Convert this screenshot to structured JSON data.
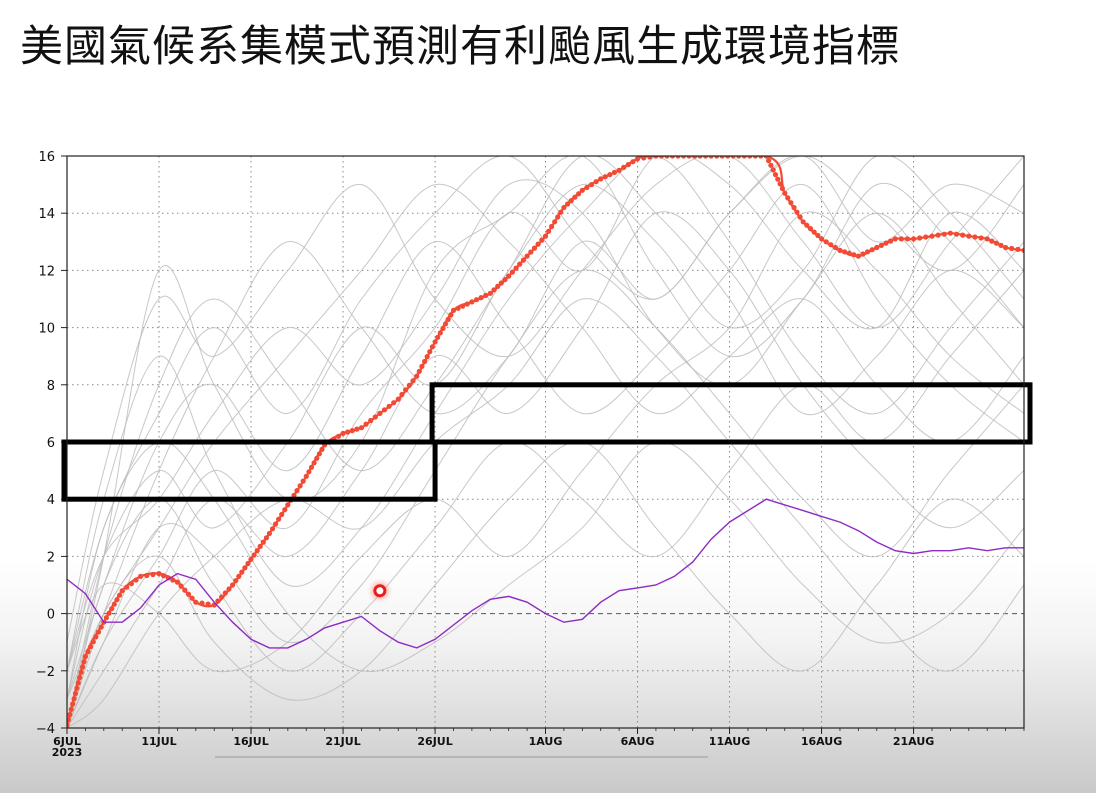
{
  "title": "美國氣候系集模式預測有利颱風生成環境指標",
  "chart_data": {
    "type": "line",
    "title": "",
    "xlabel": "",
    "ylabel": "",
    "ylim": [
      -4,
      16
    ],
    "yticks": [
      -4,
      -2,
      0,
      2,
      4,
      6,
      8,
      10,
      12,
      14,
      16
    ],
    "xlim": [
      "2023-07-06",
      "2023-08-27"
    ],
    "xticks": [
      {
        "date": "2023-07-06",
        "label": "6JUL",
        "sublabel": "2023"
      },
      {
        "date": "2023-07-11",
        "label": "11JUL"
      },
      {
        "date": "2023-07-16",
        "label": "16JUL"
      },
      {
        "date": "2023-07-21",
        "label": "21JUL"
      },
      {
        "date": "2023-07-26",
        "label": "26JUL"
      },
      {
        "date": "2023-08-01",
        "label": "1AUG"
      },
      {
        "date": "2023-08-06",
        "label": "6AUG"
      },
      {
        "date": "2023-08-11",
        "label": "11AUG"
      },
      {
        "date": "2023-08-16",
        "label": "16AUG"
      },
      {
        "date": "2023-08-21",
        "label": "21AUG"
      }
    ],
    "grid": true,
    "zero_line": true,
    "colors": {
      "ensemble_mean": "#f24a35",
      "observed": "#8e2bc4",
      "members": "#bdbdbd",
      "boxes": "#000000"
    },
    "series": [
      {
        "role": "ensemble_mean",
        "marker": "dot",
        "x": [
          "2023-07-06",
          "2023-07-07",
          "2023-07-08",
          "2023-07-09",
          "2023-07-10",
          "2023-07-11",
          "2023-07-12",
          "2023-07-13",
          "2023-07-14",
          "2023-07-15",
          "2023-07-16",
          "2023-07-17",
          "2023-07-18",
          "2023-07-19",
          "2023-07-20",
          "2023-07-21",
          "2023-07-22",
          "2023-07-23",
          "2023-07-24",
          "2023-07-25",
          "2023-07-26",
          "2023-07-27",
          "2023-07-28",
          "2023-07-29",
          "2023-07-30",
          "2023-07-31",
          "2023-08-01",
          "2023-08-02",
          "2023-08-03",
          "2023-08-04",
          "2023-08-05",
          "2023-08-06",
          "2023-08-07",
          "2023-08-13",
          "2023-08-14",
          "2023-08-15",
          "2023-08-16",
          "2023-08-17",
          "2023-08-18",
          "2023-08-19",
          "2023-08-20",
          "2023-08-21",
          "2023-08-22",
          "2023-08-23",
          "2023-08-24",
          "2023-08-25",
          "2023-08-26",
          "2023-08-27"
        ],
        "y": [
          -3.9,
          -1.5,
          -0.3,
          0.8,
          1.3,
          1.4,
          1.1,
          0.4,
          0.3,
          1.0,
          1.9,
          2.8,
          3.8,
          4.8,
          5.9,
          6.3,
          6.5,
          7.0,
          7.5,
          8.3,
          9.5,
          10.6,
          10.9,
          11.2,
          11.8,
          12.5,
          13.2,
          14.2,
          14.8,
          15.2,
          15.5,
          15.9,
          16.0,
          16.0,
          14.7,
          13.7,
          13.1,
          12.7,
          12.5,
          12.8,
          13.1,
          13.1,
          13.2,
          13.3,
          13.2,
          13.1,
          12.8,
          12.7
        ]
      },
      {
        "role": "observed",
        "marker": "none",
        "x": [
          "2023-07-06",
          "2023-07-07",
          "2023-07-08",
          "2023-07-09",
          "2023-07-10",
          "2023-07-11",
          "2023-07-12",
          "2023-07-13",
          "2023-07-14",
          "2023-07-15",
          "2023-07-16",
          "2023-07-17",
          "2023-07-18",
          "2023-07-19",
          "2023-07-20",
          "2023-07-21",
          "2023-07-22",
          "2023-07-23",
          "2023-07-24",
          "2023-07-25",
          "2023-07-26",
          "2023-07-27",
          "2023-07-28",
          "2023-07-29",
          "2023-07-30",
          "2023-07-31",
          "2023-08-01",
          "2023-08-02",
          "2023-08-03",
          "2023-08-04",
          "2023-08-05",
          "2023-08-06",
          "2023-08-07",
          "2023-08-08",
          "2023-08-09",
          "2023-08-10",
          "2023-08-11",
          "2023-08-12",
          "2023-08-13",
          "2023-08-14",
          "2023-08-15",
          "2023-08-16",
          "2023-08-17",
          "2023-08-18",
          "2023-08-19",
          "2023-08-20",
          "2023-08-21",
          "2023-08-22",
          "2023-08-23",
          "2023-08-24",
          "2023-08-25",
          "2023-08-26",
          "2023-08-27"
        ],
        "y": [
          1.2,
          0.7,
          -0.3,
          -0.3,
          0.2,
          1.0,
          1.4,
          1.2,
          0.4,
          -0.3,
          -0.9,
          -1.2,
          -1.2,
          -0.9,
          -0.5,
          -0.3,
          -0.1,
          -0.6,
          -1.0,
          -1.2,
          -0.9,
          -0.4,
          0.1,
          0.5,
          0.6,
          0.4,
          0.0,
          -0.3,
          -0.2,
          0.4,
          0.8,
          0.9,
          1.0,
          1.3,
          1.8,
          2.6,
          3.2,
          3.6,
          4.0,
          3.8,
          3.6,
          3.4,
          3.2,
          2.9,
          2.5,
          2.2,
          2.1,
          2.2,
          2.2,
          2.3,
          2.2,
          2.3,
          2.3
        ]
      }
    ],
    "ensemble_members": [
      {
        "x": [
          "2023-07-06",
          "2023-07-08",
          "2023-07-11",
          "2023-07-14",
          "2023-07-18",
          "2023-07-22",
          "2023-07-26",
          "2023-07-30",
          "2023-08-03",
          "2023-08-07",
          "2023-08-11",
          "2023-08-15",
          "2023-08-19",
          "2023-08-23",
          "2023-08-27"
        ],
        "y": [
          -4,
          2,
          12,
          8,
          4,
          6,
          12,
          14,
          16,
          12,
          9,
          11,
          15,
          13,
          10
        ]
      },
      {
        "x": [
          "2023-07-06",
          "2023-07-08",
          "2023-07-11",
          "2023-07-14",
          "2023-07-18",
          "2023-07-22",
          "2023-07-26",
          "2023-07-30",
          "2023-08-03",
          "2023-08-07",
          "2023-08-11",
          "2023-08-15",
          "2023-08-19",
          "2023-08-23",
          "2023-08-27"
        ],
        "y": [
          -2,
          4,
          9,
          5,
          1,
          3,
          7,
          11,
          14,
          16,
          13,
          9,
          7,
          10,
          13
        ]
      },
      {
        "x": [
          "2023-07-06",
          "2023-07-08",
          "2023-07-11",
          "2023-07-14",
          "2023-07-18",
          "2023-07-22",
          "2023-07-26",
          "2023-07-30",
          "2023-08-03",
          "2023-08-07",
          "2023-08-11",
          "2023-08-15",
          "2023-08-19",
          "2023-08-23",
          "2023-08-27"
        ],
        "y": [
          -4,
          -1,
          3,
          2,
          -1,
          1,
          5,
          9,
          12,
          10,
          7,
          4,
          2,
          5,
          8
        ]
      },
      {
        "x": [
          "2023-07-06",
          "2023-07-08",
          "2023-07-11",
          "2023-07-14",
          "2023-07-18",
          "2023-07-22",
          "2023-07-26",
          "2023-07-30",
          "2023-08-03",
          "2023-08-07",
          "2023-08-11",
          "2023-08-15",
          "2023-08-19",
          "2023-08-23",
          "2023-08-27"
        ],
        "y": [
          -3,
          1,
          6,
          8,
          5,
          9,
          13,
          10,
          7,
          9,
          12,
          15,
          11,
          8,
          6
        ]
      },
      {
        "x": [
          "2023-07-06",
          "2023-07-08",
          "2023-07-11",
          "2023-07-14",
          "2023-07-18",
          "2023-07-22",
          "2023-07-26",
          "2023-07-30",
          "2023-08-03",
          "2023-08-07",
          "2023-08-11",
          "2023-08-15",
          "2023-08-19",
          "2023-08-23",
          "2023-08-27"
        ],
        "y": [
          -4,
          0,
          2,
          -1,
          -3,
          -2,
          1,
          4,
          6,
          3,
          0,
          -2,
          1,
          4,
          2
        ]
      },
      {
        "x": [
          "2023-07-06",
          "2023-07-08",
          "2023-07-11",
          "2023-07-14",
          "2023-07-18",
          "2023-07-22",
          "2023-07-26",
          "2023-07-30",
          "2023-08-03",
          "2023-08-07",
          "2023-08-11",
          "2023-08-15",
          "2023-08-19",
          "2023-08-23",
          "2023-08-27"
        ],
        "y": [
          -2,
          3,
          7,
          10,
          7,
          11,
          14,
          16,
          13,
          11,
          14,
          16,
          14,
          12,
          15
        ]
      },
      {
        "x": [
          "2023-07-06",
          "2023-07-08",
          "2023-07-11",
          "2023-07-14",
          "2023-07-18",
          "2023-07-22",
          "2023-07-26",
          "2023-07-30",
          "2023-08-03",
          "2023-08-07",
          "2023-08-11",
          "2023-08-15",
          "2023-08-19",
          "2023-08-23",
          "2023-08-27"
        ],
        "y": [
          -4,
          -2,
          1,
          4,
          2,
          5,
          9,
          7,
          10,
          14,
          12,
          8,
          5,
          3,
          5
        ]
      },
      {
        "x": [
          "2023-07-06",
          "2023-07-08",
          "2023-07-11",
          "2023-07-14",
          "2023-07-18",
          "2023-07-22",
          "2023-07-26",
          "2023-07-30",
          "2023-08-03",
          "2023-08-07",
          "2023-08-11",
          "2023-08-15",
          "2023-08-19",
          "2023-08-23",
          "2023-08-27"
        ],
        "y": [
          -3,
          2,
          5,
          3,
          6,
          10,
          8,
          12,
          15,
          13,
          10,
          12,
          16,
          14,
          11
        ]
      },
      {
        "x": [
          "2023-07-06",
          "2023-07-08",
          "2023-07-11",
          "2023-07-14",
          "2023-07-18",
          "2023-07-22",
          "2023-07-26",
          "2023-07-30",
          "2023-08-03",
          "2023-08-07",
          "2023-08-11",
          "2023-08-15",
          "2023-08-19",
          "2023-08-23",
          "2023-08-27"
        ],
        "y": [
          -4,
          1,
          4,
          1,
          -2,
          0,
          3,
          6,
          4,
          2,
          5,
          8,
          6,
          9,
          12
        ]
      },
      {
        "x": [
          "2023-07-06",
          "2023-07-08",
          "2023-07-11",
          "2023-07-14",
          "2023-07-18",
          "2023-07-22",
          "2023-07-26",
          "2023-07-30",
          "2023-08-03",
          "2023-08-07",
          "2023-08-11",
          "2023-08-15",
          "2023-08-19",
          "2023-08-23",
          "2023-08-27"
        ],
        "y": [
          -1,
          5,
          11,
          9,
          12,
          15,
          11,
          9,
          12,
          15,
          16,
          13,
          10,
          13,
          16
        ]
      },
      {
        "x": [
          "2023-07-06",
          "2023-07-08",
          "2023-07-11",
          "2023-07-14",
          "2023-07-18",
          "2023-07-22",
          "2023-07-26",
          "2023-07-30",
          "2023-08-03",
          "2023-08-07",
          "2023-08-11",
          "2023-08-15",
          "2023-08-19",
          "2023-08-23",
          "2023-08-27"
        ],
        "y": [
          -4,
          -3,
          0,
          2,
          4,
          3,
          6,
          8,
          11,
          9,
          6,
          3,
          0,
          -2,
          1
        ]
      },
      {
        "x": [
          "2023-07-06",
          "2023-07-08",
          "2023-07-11",
          "2023-07-14",
          "2023-07-18",
          "2023-07-22",
          "2023-07-26",
          "2023-07-30",
          "2023-08-03",
          "2023-08-07",
          "2023-08-11",
          "2023-08-15",
          "2023-08-19",
          "2023-08-23",
          "2023-08-27"
        ],
        "y": [
          -3,
          0,
          3,
          6,
          9,
          12,
          15,
          13,
          10,
          7,
          9,
          11,
          8,
          6,
          9
        ]
      },
      {
        "x": [
          "2023-07-06",
          "2023-07-08",
          "2023-07-11",
          "2023-07-14",
          "2023-07-18",
          "2023-07-22",
          "2023-07-26",
          "2023-07-30",
          "2023-08-03",
          "2023-08-07",
          "2023-08-11",
          "2023-08-15",
          "2023-08-19",
          "2023-08-23",
          "2023-08-27"
        ],
        "y": [
          -4,
          2,
          8,
          11,
          8,
          5,
          8,
          12,
          16,
          14,
          11,
          7,
          9,
          12,
          10
        ]
      },
      {
        "x": [
          "2023-07-06",
          "2023-07-08",
          "2023-07-11",
          "2023-07-14",
          "2023-07-18",
          "2023-07-22",
          "2023-07-26",
          "2023-07-30",
          "2023-08-03",
          "2023-08-07",
          "2023-08-11",
          "2023-08-15",
          "2023-08-19",
          "2023-08-23",
          "2023-08-27"
        ],
        "y": [
          -2,
          1,
          0,
          -2,
          -1,
          2,
          4,
          2,
          5,
          8,
          10,
          14,
          12,
          9,
          7
        ]
      },
      {
        "x": [
          "2023-07-06",
          "2023-07-08",
          "2023-07-11",
          "2023-07-14",
          "2023-07-18",
          "2023-07-22",
          "2023-07-26",
          "2023-07-30",
          "2023-08-03",
          "2023-08-07",
          "2023-08-11",
          "2023-08-15",
          "2023-08-19",
          "2023-08-23",
          "2023-08-27"
        ],
        "y": [
          -4,
          -1,
          2,
          5,
          3,
          7,
          10,
          14,
          12,
          16,
          15,
          12,
          10,
          14,
          12
        ]
      },
      {
        "x": [
          "2023-07-06",
          "2023-07-08",
          "2023-07-11",
          "2023-07-14",
          "2023-07-18",
          "2023-07-22",
          "2023-07-26",
          "2023-07-30",
          "2023-08-03",
          "2023-08-07",
          "2023-08-11",
          "2023-08-15",
          "2023-08-19",
          "2023-08-23",
          "2023-08-27"
        ],
        "y": [
          -3,
          3,
          6,
          4,
          0,
          -2,
          -1,
          1,
          3,
          6,
          4,
          1,
          -1,
          0,
          3
        ]
      },
      {
        "x": [
          "2023-07-06",
          "2023-07-08",
          "2023-07-11",
          "2023-07-14",
          "2023-07-18",
          "2023-07-22",
          "2023-07-26",
          "2023-07-30",
          "2023-08-03",
          "2023-08-07",
          "2023-08-11",
          "2023-08-15",
          "2023-08-19",
          "2023-08-23",
          "2023-08-27"
        ],
        "y": [
          -4,
          0,
          5,
          9,
          13,
          10,
          7,
          9,
          13,
          11,
          14,
          16,
          13,
          15,
          14
        ]
      },
      {
        "x": [
          "2023-07-06",
          "2023-07-08",
          "2023-07-11",
          "2023-07-14",
          "2023-07-18",
          "2023-07-22",
          "2023-07-26",
          "2023-07-30",
          "2023-08-03",
          "2023-08-07",
          "2023-08-11",
          "2023-08-15",
          "2023-08-19",
          "2023-08-23",
          "2023-08-27"
        ],
        "y": [
          -2,
          2,
          4,
          7,
          10,
          8,
          11,
          15,
          14,
          10,
          8,
          11,
          14,
          11,
          8
        ]
      }
    ],
    "annotations": [
      {
        "type": "rect",
        "x": [
          "2023-07-06",
          "2023-07-26"
        ],
        "y": [
          4,
          6
        ]
      },
      {
        "type": "rect",
        "x": [
          "2023-07-26",
          "2023-08-27"
        ],
        "y": [
          6,
          8
        ]
      },
      {
        "type": "point",
        "x": "2023-07-23",
        "y": 0.8,
        "color": "#e81e1e"
      }
    ]
  }
}
